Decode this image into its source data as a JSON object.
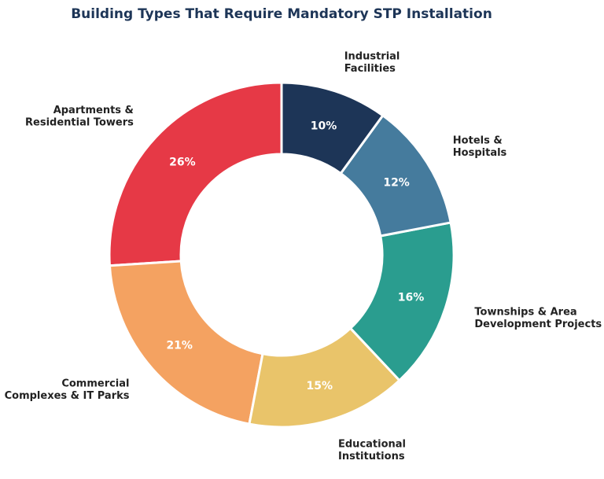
{
  "chart_data": {
    "type": "pie",
    "donut": true,
    "title": "Building Types That Require Mandatory STP Installation",
    "start_angle": "12 o'clock",
    "direction": "counterclockwise",
    "categories": [
      [
        "Apartments &",
        "Residential Towers"
      ],
      [
        "Commercial",
        "Complexes & IT Parks"
      ],
      [
        "Educational",
        "Institutions"
      ],
      [
        "Townships & Area",
        "Development Projects"
      ],
      [
        "Hotels &",
        "Hospitals"
      ],
      [
        "Industrial",
        "Facilities"
      ]
    ],
    "values": [
      26,
      21,
      15,
      16,
      12,
      10
    ],
    "value_labels": [
      "26%",
      "21%",
      "15%",
      "16%",
      "12%",
      "10%"
    ],
    "colors": [
      "#e63946",
      "#f4a261",
      "#e9c46a",
      "#2a9d8f",
      "#457b9d",
      "#1d3557"
    ],
    "title_color": "#1d3557",
    "label_color": "#222222",
    "value_label_color": "#ffffff"
  }
}
